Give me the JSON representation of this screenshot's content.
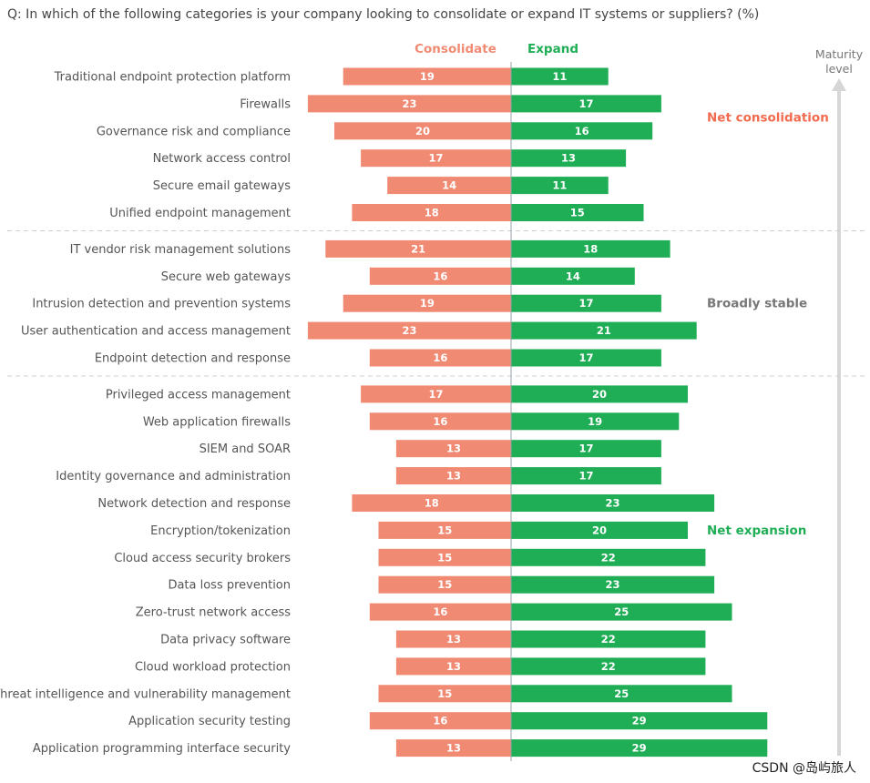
{
  "title": "Q: In which of the following categories is your company looking to consolidate or expand IT systems or suppliers? (%)",
  "watermark": "CSDN @岛屿旅人",
  "maturity_label_line1": "Maturity",
  "maturity_label_line2": "level",
  "colors": {
    "consolidate": "#f08a73",
    "expand": "#1fae55",
    "group_consolidation": "#f26b4f",
    "group_stable": "#777777",
    "group_expansion": "#1fae55"
  },
  "chart_data": {
    "type": "bar",
    "orientation": "horizontal-diverging",
    "categories": [
      "Traditional endpoint protection platform",
      "Firewalls",
      "Governance risk and compliance",
      "Network access control",
      "Secure email gateways",
      "Unified endpoint management",
      "IT vendor risk management solutions",
      "Secure web gateways",
      "Intrusion detection and prevention systems",
      "User authentication and access management",
      "Endpoint detection and response",
      "Privileged access management",
      "Web application firewalls",
      "SIEM and SOAR",
      "Identity governance and administration",
      "Network detection and response",
      "Encryption/tokenization",
      "Cloud access security brokers",
      "Data loss prevention",
      "Zero-trust network access",
      "Data privacy software",
      "Cloud workload protection",
      "Threat intelligence and vulnerability management",
      "Application security testing",
      "Application programming interface security"
    ],
    "series": [
      {
        "name": "Consolidate",
        "values": [
          19,
          23,
          20,
          17,
          14,
          18,
          21,
          16,
          19,
          23,
          16,
          17,
          16,
          13,
          13,
          18,
          15,
          15,
          15,
          16,
          13,
          13,
          15,
          16,
          13
        ]
      },
      {
        "name": "Expand",
        "values": [
          11,
          17,
          16,
          13,
          11,
          15,
          18,
          14,
          17,
          21,
          17,
          20,
          19,
          17,
          17,
          23,
          20,
          22,
          23,
          25,
          22,
          22,
          25,
          29,
          29
        ]
      }
    ],
    "groups": [
      {
        "label": "Net consolidation",
        "start": 0,
        "end": 5
      },
      {
        "label": "Broadly stable",
        "start": 6,
        "end": 10
      },
      {
        "label": "Net expansion",
        "start": 11,
        "end": 24
      }
    ]
  }
}
